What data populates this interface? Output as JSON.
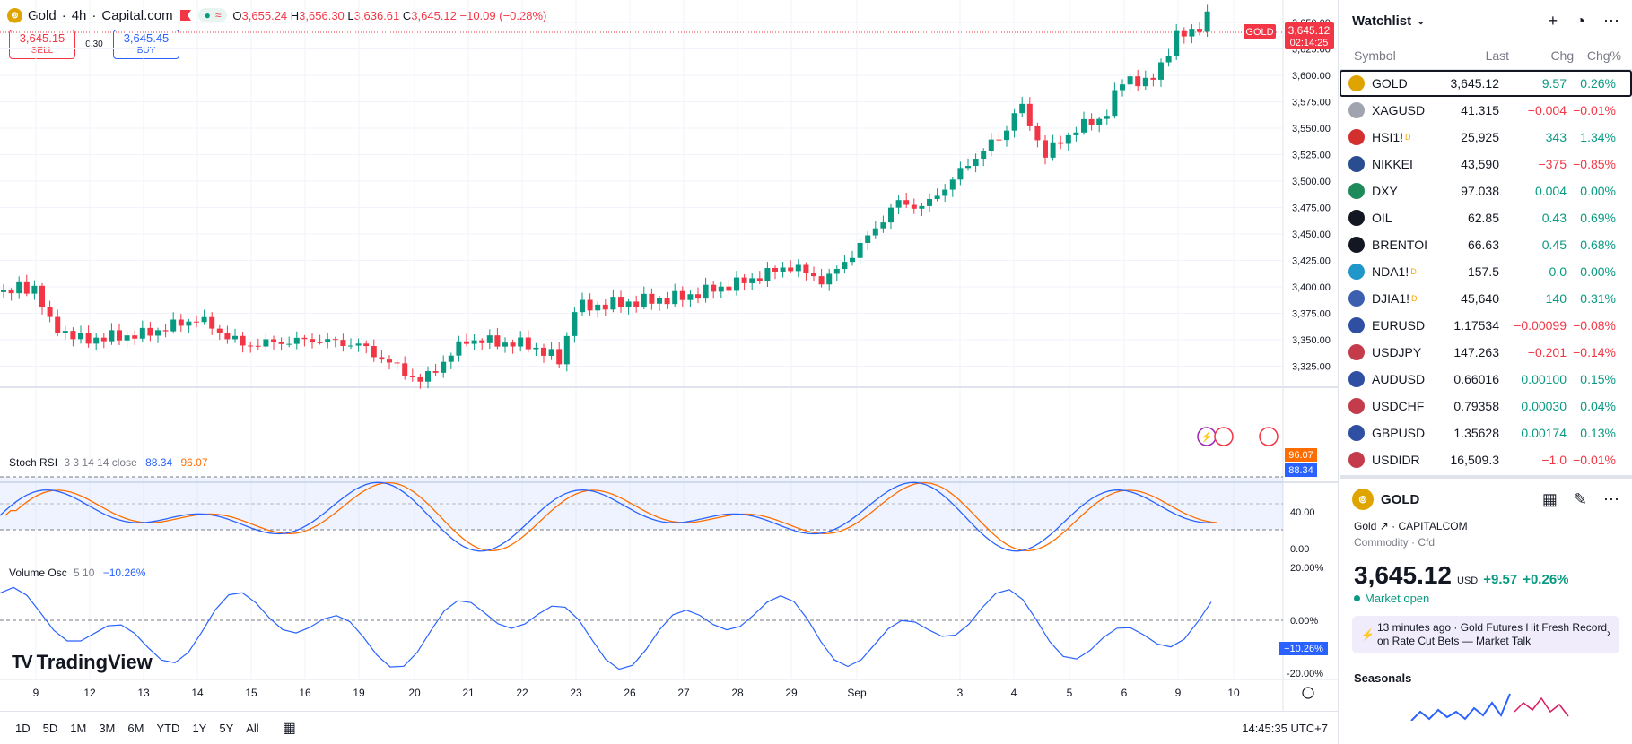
{
  "symbol": {
    "name": "Gold",
    "interval": "4h",
    "broker": "Capital.com",
    "open_label": "O",
    "open": "3,655.24",
    "high_label": "H",
    "high": "3,656.30",
    "low_label": "L",
    "low": "3,636.61",
    "close_label": "C",
    "close": "3,645.12",
    "change": "−10.09 (−0.28%)"
  },
  "trade": {
    "sell_price": "3,645.15",
    "sell_label": "SELL",
    "spread": "0.30",
    "buy_price": "3,645.45",
    "buy_label": "BUY"
  },
  "price_axis": {
    "ticks": [
      "3,650.00",
      "3,625.00",
      "3,600.00",
      "3,575.00",
      "3,550.00",
      "3,525.00",
      "3,500.00",
      "3,475.00",
      "3,450.00",
      "3,425.00",
      "3,400.00",
      "3,375.00",
      "3,350.00",
      "3,325.00"
    ],
    "tag_symbol": "GOLD",
    "current_price": "3,645.12",
    "countdown": "02:14:25"
  },
  "stoch": {
    "title": "Stoch RSI",
    "params": "3 3 14 14 close",
    "k_value": "88.34",
    "d_value": "96.07",
    "ticks": [
      "40.00",
      "0.00"
    ],
    "k_color": "#2962ff",
    "d_color": "#ff6d00"
  },
  "volosc": {
    "title": "Volume Osc",
    "params": "5 10",
    "value": "−10.26%",
    "ticks": [
      "20.00%",
      "0.00%",
      "-20.00%"
    ]
  },
  "time_axis": [
    "9",
    "12",
    "13",
    "14",
    "15",
    "16",
    "19",
    "20",
    "21",
    "22",
    "23",
    "26",
    "27",
    "28",
    "29",
    "Sep",
    "3",
    "4",
    "5",
    "6",
    "9",
    "10"
  ],
  "branding": "TradingView",
  "ranges": [
    "1D",
    "5D",
    "1M",
    "3M",
    "6M",
    "YTD",
    "1Y",
    "5Y",
    "All"
  ],
  "clock": "14:45:35 UTC+7",
  "watchlist": {
    "title": "Watchlist",
    "col_symbol": "Symbol",
    "col_last": "Last",
    "col_chg": "Chg",
    "col_chgp": "Chg%",
    "rows": [
      {
        "sym": "GOLD",
        "last": "3,645.12",
        "chg": "9.57",
        "chgp": "0.26%",
        "dir": "pos",
        "color": "#e0a400",
        "badge": ""
      },
      {
        "sym": "XAGUSD",
        "last": "41.315",
        "chg": "−0.004",
        "chgp": "−0.01%",
        "dir": "neg",
        "color": "#a0a4ae",
        "badge": ""
      },
      {
        "sym": "HSI1!",
        "last": "25,925",
        "chg": "343",
        "chgp": "1.34%",
        "dir": "pos",
        "color": "#d32f2f",
        "badge": "D"
      },
      {
        "sym": "NIKKEI",
        "last": "43,590",
        "chg": "−375",
        "chgp": "−0.85%",
        "dir": "neg",
        "color": "#2a4d8f",
        "badge": ""
      },
      {
        "sym": "DXY",
        "last": "97.038",
        "chg": "0.004",
        "chgp": "0.00%",
        "dir": "pos",
        "color": "#1e8a5a",
        "badge": ""
      },
      {
        "sym": "OIL",
        "last": "62.85",
        "chg": "0.43",
        "chgp": "0.69%",
        "dir": "pos",
        "color": "#131722",
        "badge": ""
      },
      {
        "sym": "BRENTOI",
        "last": "66.63",
        "chg": "0.45",
        "chgp": "0.68%",
        "dir": "pos",
        "color": "#131722",
        "badge": ""
      },
      {
        "sym": "NDA1!",
        "last": "157.5",
        "chg": "0.0",
        "chgp": "0.00%",
        "dir": "pos",
        "color": "#2196c9",
        "badge": "D"
      },
      {
        "sym": "DJIA1!",
        "last": "45,640",
        "chg": "140",
        "chgp": "0.31%",
        "dir": "pos",
        "color": "#3c5fb0",
        "badge": "D"
      },
      {
        "sym": "EURUSD",
        "last": "1.17534",
        "chg": "−0.00099",
        "chgp": "−0.08%",
        "dir": "neg",
        "color": "#2f4fa3",
        "badge": ""
      },
      {
        "sym": "USDJPY",
        "last": "147.263",
        "chg": "−0.201",
        "chgp": "−0.14%",
        "dir": "neg",
        "color": "#c43b4b",
        "badge": ""
      },
      {
        "sym": "AUDUSD",
        "last": "0.66016",
        "chg": "0.00100",
        "chgp": "0.15%",
        "dir": "pos",
        "color": "#2f4fa3",
        "badge": ""
      },
      {
        "sym": "USDCHF",
        "last": "0.79358",
        "chg": "0.00030",
        "chgp": "0.04%",
        "dir": "pos",
        "color": "#c43b4b",
        "badge": ""
      },
      {
        "sym": "GBPUSD",
        "last": "1.35628",
        "chg": "0.00174",
        "chgp": "0.13%",
        "dir": "pos",
        "color": "#2f4fa3",
        "badge": ""
      },
      {
        "sym": "USDIDR",
        "last": "16,509.3",
        "chg": "−1.0",
        "chgp": "−0.01%",
        "dir": "neg",
        "color": "#c43b4b",
        "badge": ""
      }
    ]
  },
  "details": {
    "symbol": "GOLD",
    "name": "Gold",
    "exchange": "CAPITALCOM",
    "category": "Commodity · Cfd",
    "price": "3,645.12",
    "currency": "USD",
    "change": "+9.57",
    "change_pct": "+0.26%",
    "status": "Market open",
    "news": "13 minutes ago · Gold Futures Hit Fresh Record on Rate Cut Bets — Market Talk",
    "seasonals": "Seasonals"
  },
  "colors": {
    "up": "#089981",
    "down": "#f23645",
    "accent": "#2962ff"
  }
}
